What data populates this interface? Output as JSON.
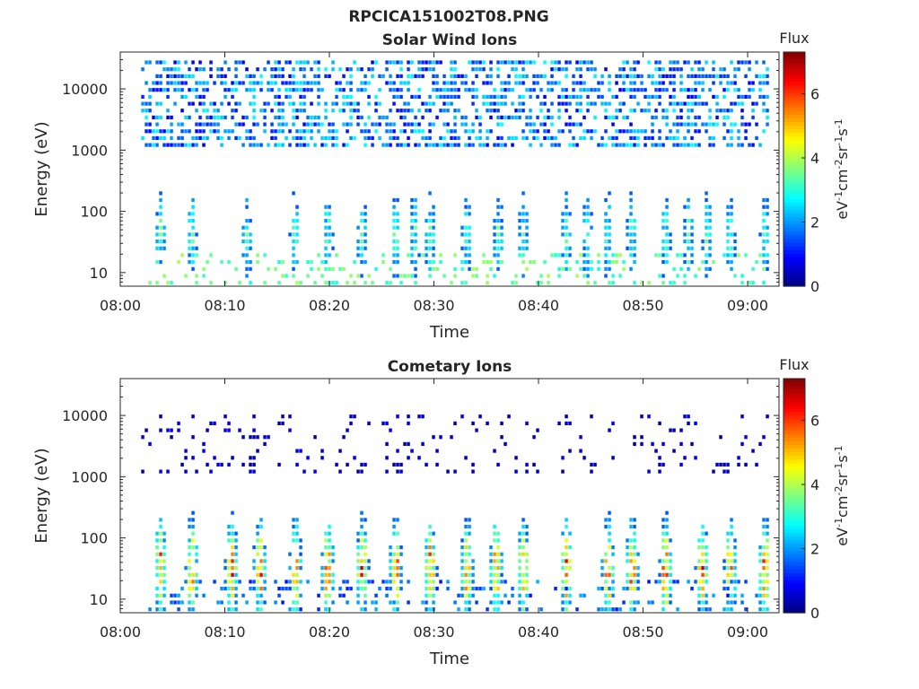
{
  "figure": {
    "title": "RPCICA151002T08.PNG"
  },
  "chart_data": [
    {
      "type": "heatmap",
      "title": "Solar Wind Ions",
      "xlabel": "Time",
      "ylabel": "Energy (eV)",
      "x_ticks": [
        "08:00",
        "08:10",
        "08:20",
        "08:30",
        "08:40",
        "08:50",
        "09:00"
      ],
      "x_range": [
        "08:00",
        "09:03"
      ],
      "data_x_range": [
        "08:02",
        "09:02"
      ],
      "y_ticks": [
        "10",
        "100",
        "1000",
        "10000"
      ],
      "y_scale": "log",
      "y_range": [
        6,
        40000
      ],
      "colorbar": {
        "title": "Flux",
        "label": "eV^-1 cm^-2 sr^-1 s^-1",
        "ticks": [
          "0",
          "2",
          "4",
          "6"
        ],
        "range": [
          0,
          7.3
        ],
        "colormap": "jet"
      },
      "bursts_minutes": [
        3.7,
        6.7,
        12.0,
        16.6,
        19.7,
        23.0,
        26.2,
        28.0,
        29.5,
        33.0,
        36.0,
        38.4,
        42.5,
        44.5,
        46.5,
        48.8,
        52.0,
        54.2,
        56.0,
        58.2,
        61.5
      ],
      "burst_energy_peak_eV": 40,
      "burst_flux_peak": 3.2,
      "background_energy_eV": [
        1000,
        30000
      ],
      "background_flux": [
        0.8,
        2.8
      ]
    },
    {
      "type": "heatmap",
      "title": "Cometary Ions",
      "xlabel": "Time",
      "ylabel": "Energy (eV)",
      "x_ticks": [
        "08:00",
        "08:10",
        "08:20",
        "08:30",
        "08:40",
        "08:50",
        "09:00"
      ],
      "x_range": [
        "08:00",
        "09:03"
      ],
      "data_x_range": [
        "08:02",
        "09:02"
      ],
      "y_ticks": [
        "10",
        "100",
        "1000",
        "10000"
      ],
      "y_scale": "log",
      "y_range": [
        6,
        40000
      ],
      "colorbar": {
        "title": "Flux",
        "label": "eV^-1 cm^-2 sr^-1 s^-1",
        "ticks": [
          "0",
          "2",
          "4",
          "6"
        ],
        "range": [
          0,
          7.3
        ],
        "colormap": "jet"
      },
      "bursts_minutes": [
        3.7,
        6.7,
        10.5,
        13.2,
        16.6,
        19.7,
        23.0,
        26.2,
        29.5,
        33.0,
        35.8,
        38.4,
        42.5,
        46.5,
        48.8,
        52.0,
        55.5,
        58.2,
        61.5
      ],
      "burst_energy_peak_eV": 30,
      "burst_flux_peak": 5.8,
      "background_energy_eV": [
        1000,
        12000
      ],
      "background_flux": [
        0.2,
        0.9
      ]
    }
  ]
}
